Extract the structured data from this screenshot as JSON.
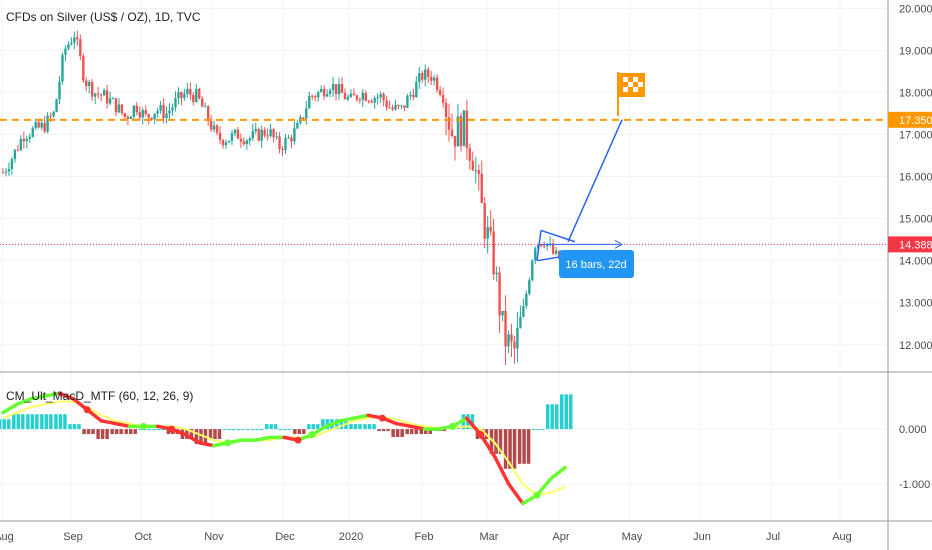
{
  "chart_data": [
    {
      "type": "candlestick",
      "title": "CFDs on Silver (US$ / OZ), 1D, TVC",
      "ylim": [
        11.4,
        20.2
      ],
      "y_ticks": [
        "20.000",
        "19.000",
        "18.000",
        "17.000",
        "16.000",
        "15.000",
        "14.000",
        "13.000",
        "12.000"
      ],
      "x_ticks": [
        "Aug",
        "Sep",
        "Oct",
        "Nov",
        "Dec",
        "2020",
        "Feb",
        "Mar",
        "Apr",
        "May",
        "Jun",
        "Jul",
        "Aug"
      ],
      "trend_closes": [
        16.1,
        16.5,
        17.0,
        17.1,
        17.2,
        17.5,
        19.0,
        19.4,
        18.3,
        18.0,
        17.9,
        17.7,
        17.4,
        17.7,
        17.4,
        17.6,
        17.5,
        17.8,
        18.0,
        17.9,
        17.4,
        16.9,
        16.9,
        17.0,
        16.9,
        17.0,
        17.1,
        16.7,
        16.9,
        17.2,
        17.9,
        18.0,
        18.2,
        18.0,
        17.8,
        18.0,
        17.9,
        17.9,
        17.6,
        17.6,
        18.0,
        18.4,
        18.4,
        18.0,
        17.0,
        17.2,
        16.5,
        15.0,
        14.0,
        12.2,
        11.8,
        12.9,
        14.4,
        14.5,
        14.1,
        14.0
      ],
      "price_label": "14.388",
      "level_label": "17.350",
      "measure_label": "16 bars, 22d",
      "colors": {
        "up": "#26a69a",
        "down": "#ef5350",
        "level": "#ff9800",
        "price": "#f23645",
        "drawing": "#2962ff",
        "label_bg": "#2196f3"
      }
    },
    {
      "type": "line",
      "title": "CM_Ult_MacD_MTF (60, 12, 26, 9)",
      "ylim": [
        -1.65,
        1.0
      ],
      "y_ticks": [
        "0.000",
        "-1.000"
      ],
      "macd_line": [
        0.3,
        0.45,
        0.55,
        0.6,
        0.65,
        0.55,
        0.35,
        0.15,
        0.1,
        0.05,
        0.05,
        0.05,
        0.0,
        -0.1,
        -0.25,
        -0.3,
        -0.25,
        -0.2,
        -0.2,
        -0.15,
        -0.15,
        -0.2,
        -0.1,
        0.05,
        0.15,
        0.2,
        0.25,
        0.2,
        0.1,
        0.05,
        0.0,
        0.0,
        0.05,
        0.2,
        -0.1,
        -0.5,
        -1.0,
        -1.35,
        -1.2,
        -0.9,
        -0.7
      ],
      "signal_line": [
        0.2,
        0.3,
        0.4,
        0.45,
        0.5,
        0.5,
        0.4,
        0.25,
        0.15,
        0.1,
        0.05,
        0.05,
        0.05,
        0.0,
        -0.1,
        -0.2,
        -0.25,
        -0.2,
        -0.2,
        -0.2,
        -0.15,
        -0.15,
        -0.15,
        -0.05,
        0.05,
        0.15,
        0.2,
        0.22,
        0.18,
        0.1,
        0.05,
        0.02,
        0.02,
        0.05,
        0.0,
        -0.25,
        -0.6,
        -1.0,
        -1.2,
        -1.15,
        -1.05
      ],
      "colors": {
        "rising": "#66ff33",
        "falling": "#ff3333",
        "signal": "#ffff66",
        "hist_pos": "#00c8c8",
        "hist_neg": "#a52a2a"
      }
    }
  ]
}
